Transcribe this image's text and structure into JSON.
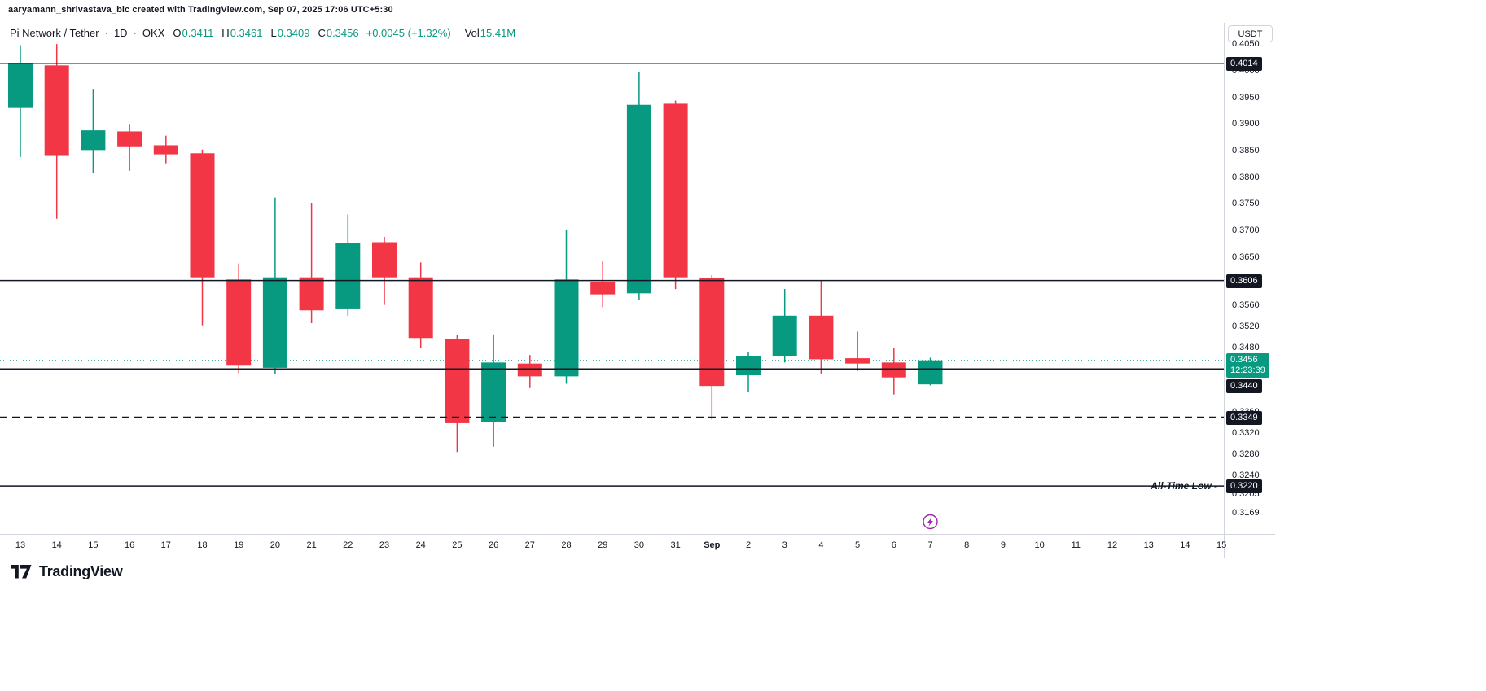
{
  "attribution": "aaryamann_shrivastava_bic created with TradingView.com, Sep 07, 2025 17:06 UTC+5:30",
  "header": {
    "symbol": "Pi Network / Tether",
    "separator": "·",
    "interval": "1D",
    "exchange": "OKX",
    "open_label": "O",
    "open_value": "0.3411",
    "high_label": "H",
    "high_value": "0.3461",
    "low_label": "L",
    "low_value": "0.3409",
    "close_label": "C",
    "close_value": "0.3456",
    "change_text": "+0.0045 (+1.32%)",
    "volume_label": "Vol",
    "volume_value": "15.41M"
  },
  "price_scale": {
    "currency": "USDT",
    "ticks": [
      "0.4050",
      "0.4000",
      "0.3950",
      "0.3900",
      "0.3850",
      "0.3800",
      "0.3750",
      "0.3700",
      "0.3650",
      "0.3560",
      "0.3520",
      "0.3480",
      "0.3400",
      "0.3360",
      "0.3320",
      "0.3280",
      "0.3240",
      "0.3205",
      "0.3169"
    ]
  },
  "footer": {
    "logo_text": "TradingView"
  },
  "colors": {
    "up": "#089981",
    "down": "#f23645",
    "text": "#131722",
    "level_line": "#131722",
    "marker": "#9c27b0",
    "badge_dark": "#131722"
  },
  "chart_data": {
    "type": "candlestick",
    "title": "Pi Network / Tether 1D OKX",
    "ylim": [
      0.313,
      0.409
    ],
    "x_labels": [
      "13",
      "14",
      "15",
      "16",
      "17",
      "18",
      "19",
      "20",
      "21",
      "22",
      "23",
      "24",
      "25",
      "26",
      "27",
      "28",
      "29",
      "30",
      "31",
      "Sep",
      "2",
      "3",
      "4",
      "5",
      "6",
      "7",
      "8",
      "9",
      "10",
      "11",
      "12",
      "13",
      "14",
      "15"
    ],
    "candles": [
      {
        "t": "13",
        "o": 0.393,
        "h": 0.4048,
        "l": 0.3838,
        "c": 0.4014
      },
      {
        "t": "14",
        "o": 0.401,
        "h": 0.405,
        "l": 0.3722,
        "c": 0.384
      },
      {
        "t": "15",
        "o": 0.3851,
        "h": 0.3966,
        "l": 0.3808,
        "c": 0.3888
      },
      {
        "t": "16",
        "o": 0.3886,
        "h": 0.39,
        "l": 0.3812,
        "c": 0.3858
      },
      {
        "t": "17",
        "o": 0.386,
        "h": 0.3878,
        "l": 0.3826,
        "c": 0.3843
      },
      {
        "t": "18",
        "o": 0.3845,
        "h": 0.3852,
        "l": 0.3522,
        "c": 0.3612
      },
      {
        "t": "19",
        "o": 0.3608,
        "h": 0.3638,
        "l": 0.3432,
        "c": 0.3446
      },
      {
        "t": "20",
        "o": 0.3442,
        "h": 0.3762,
        "l": 0.343,
        "c": 0.3612
      },
      {
        "t": "21",
        "o": 0.3612,
        "h": 0.3752,
        "l": 0.3526,
        "c": 0.355
      },
      {
        "t": "22",
        "o": 0.3552,
        "h": 0.373,
        "l": 0.354,
        "c": 0.3676
      },
      {
        "t": "23",
        "o": 0.3678,
        "h": 0.3688,
        "l": 0.356,
        "c": 0.3612
      },
      {
        "t": "24",
        "o": 0.3612,
        "h": 0.364,
        "l": 0.348,
        "c": 0.3498
      },
      {
        "t": "25",
        "o": 0.3496,
        "h": 0.3504,
        "l": 0.3284,
        "c": 0.3338
      },
      {
        "t": "26",
        "o": 0.334,
        "h": 0.3505,
        "l": 0.3294,
        "c": 0.3452
      },
      {
        "t": "27",
        "o": 0.345,
        "h": 0.3466,
        "l": 0.3404,
        "c": 0.3426
      },
      {
        "t": "28",
        "o": 0.3426,
        "h": 0.3702,
        "l": 0.3412,
        "c": 0.3608
      },
      {
        "t": "29",
        "o": 0.3604,
        "h": 0.3642,
        "l": 0.3556,
        "c": 0.358
      },
      {
        "t": "30",
        "o": 0.3582,
        "h": 0.3998,
        "l": 0.357,
        "c": 0.3936
      },
      {
        "t": "31",
        "o": 0.3938,
        "h": 0.3944,
        "l": 0.359,
        "c": 0.3612
      },
      {
        "t": "Sep",
        "o": 0.361,
        "h": 0.3616,
        "l": 0.3345,
        "c": 0.3408
      },
      {
        "t": "2",
        "o": 0.3428,
        "h": 0.3472,
        "l": 0.3396,
        "c": 0.3464
      },
      {
        "t": "3",
        "o": 0.3464,
        "h": 0.359,
        "l": 0.3452,
        "c": 0.354
      },
      {
        "t": "4",
        "o": 0.354,
        "h": 0.3606,
        "l": 0.343,
        "c": 0.3458
      },
      {
        "t": "5",
        "o": 0.346,
        "h": 0.351,
        "l": 0.3436,
        "c": 0.345
      },
      {
        "t": "6",
        "o": 0.3452,
        "h": 0.348,
        "l": 0.3392,
        "c": 0.3424
      },
      {
        "t": "7",
        "o": 0.3411,
        "h": 0.3461,
        "l": 0.3409,
        "c": 0.3456
      }
    ],
    "levels": [
      {
        "value": 0.4014,
        "label": "0.4014",
        "style": "solid"
      },
      {
        "value": 0.3606,
        "label": "0.3606",
        "style": "solid"
      },
      {
        "value": 0.344,
        "label": "0.3440",
        "style": "solid"
      },
      {
        "value": 0.3349,
        "label": "0.3349",
        "style": "dashed"
      },
      {
        "value": 0.322,
        "label": "0.3220",
        "style": "solid",
        "annotation": "All-Time Low -"
      }
    ],
    "current_price": {
      "value": 0.3456,
      "label": "0.3456",
      "countdown": "12:23:39"
    },
    "marker": {
      "x_index": 25,
      "name": "lightning-event"
    }
  }
}
